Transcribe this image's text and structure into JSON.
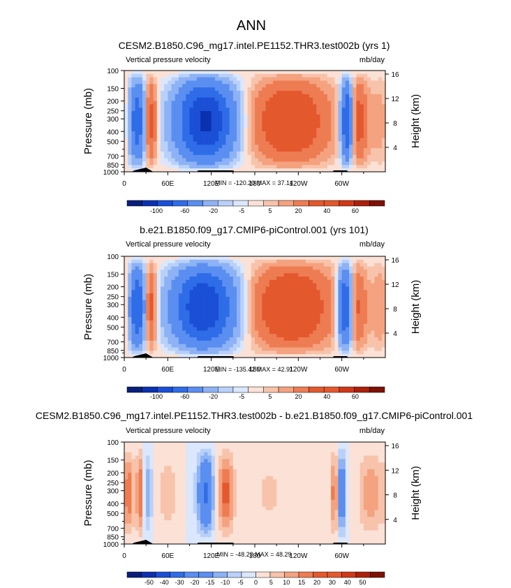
{
  "page_title": "ANN",
  "chart_data": [
    {
      "type": "heatmap",
      "title": "CESM2.B1850.C96_mg17.intel.PE1152.THR3.test002b (yrs 1)",
      "left_label": "Vertical pressure velocity",
      "right_label": "mb/day",
      "ylabel": "Pressure (mb)",
      "ylabel_right": "Height (km)",
      "x_ticks": [
        "0",
        "60E",
        "120E",
        "180",
        "120W",
        "60W"
      ],
      "x_tick_lons": [
        0,
        60,
        120,
        180,
        240,
        300
      ],
      "xlim": [
        0,
        360
      ],
      "y_ticks": [
        "100",
        "150",
        "200",
        "250",
        "300",
        "400",
        "500",
        "700",
        "850",
        "1000"
      ],
      "y_tick_values": [
        100,
        150,
        200,
        250,
        300,
        400,
        500,
        700,
        850,
        1000
      ],
      "ylim": [
        1000,
        100
      ],
      "y_log": true,
      "height_ticks": [
        "4",
        "8",
        "12",
        "16"
      ],
      "height_tick_values": [
        4,
        8,
        12,
        16
      ],
      "stats_text": "MIN = -120.20  MAX =  37.14",
      "colorbar_labels": [
        "-100",
        "-60",
        "-20",
        "-5",
        "5",
        "20",
        "40",
        "60"
      ],
      "colorbar_levels": [
        -100,
        -80,
        -60,
        -40,
        -20,
        -10,
        -5,
        -2,
        2,
        5,
        10,
        20,
        30,
        40,
        60,
        80
      ],
      "min": -120.2,
      "max": 37.14,
      "features": [
        {
          "lon": 18,
          "width": 8,
          "amp": -55
        },
        {
          "lon": 36,
          "width": 6,
          "amp": 30
        },
        {
          "lon": 112,
          "width": 28,
          "amp": -85
        },
        {
          "lon": 228,
          "width": 38,
          "amp": 35
        },
        {
          "lon": 307,
          "width": 6,
          "amp": -70
        },
        {
          "lon": 322,
          "width": 10,
          "amp": 25
        },
        {
          "lon": 355,
          "width": 10,
          "amp": 8
        }
      ]
    },
    {
      "type": "heatmap",
      "title": "b.e21.B1850.f09_g17.CMIP6-piControl.001 (yrs 101)",
      "left_label": "Vertical pressure velocity",
      "right_label": "mb/day",
      "ylabel": "Pressure (mb)",
      "ylabel_right": "Height (km)",
      "x_ticks": [
        "0",
        "60E",
        "120E",
        "180",
        "120W",
        "60W"
      ],
      "x_tick_lons": [
        0,
        60,
        120,
        180,
        240,
        300
      ],
      "xlim": [
        0,
        360
      ],
      "y_ticks": [
        "100",
        "150",
        "200",
        "250",
        "300",
        "400",
        "500",
        "700",
        "850",
        "1000"
      ],
      "y_tick_values": [
        100,
        150,
        200,
        250,
        300,
        400,
        500,
        700,
        850,
        1000
      ],
      "ylim": [
        1000,
        100
      ],
      "y_log": true,
      "height_ticks": [
        "4",
        "8",
        "12",
        "16"
      ],
      "height_tick_values": [
        4,
        8,
        12,
        16
      ],
      "stats_text": "MIN = -135.42  MAX =  42.91",
      "colorbar_labels": [
        "-100",
        "-60",
        "-20",
        "-5",
        "5",
        "20",
        "40",
        "60"
      ],
      "colorbar_levels": [
        -100,
        -80,
        -60,
        -40,
        -20,
        -10,
        -5,
        -2,
        2,
        5,
        10,
        20,
        30,
        40,
        60,
        80
      ],
      "min": -135.42,
      "max": 42.91,
      "features": [
        {
          "lon": 18,
          "width": 8,
          "amp": -60
        },
        {
          "lon": 36,
          "width": 6,
          "amp": 30
        },
        {
          "lon": 110,
          "width": 30,
          "amp": -80
        },
        {
          "lon": 230,
          "width": 38,
          "amp": 38
        },
        {
          "lon": 305,
          "width": 7,
          "amp": -70
        },
        {
          "lon": 320,
          "width": 10,
          "amp": 22
        },
        {
          "lon": 355,
          "width": 10,
          "amp": 10
        }
      ]
    },
    {
      "type": "heatmap",
      "title": "CESM2.B1850.C96_mg17.intel.PE1152.THR3.test002b - b.e21.B1850.f09_g17.CMIP6-piControl.001",
      "left_label": "Vertical pressure velocity",
      "right_label": "mb/day",
      "ylabel": "Pressure (mb)",
      "ylabel_right": "Height (km)",
      "x_ticks": [
        "0",
        "60E",
        "120E",
        "180",
        "120W",
        "60W"
      ],
      "x_tick_lons": [
        0,
        60,
        120,
        180,
        240,
        300
      ],
      "xlim": [
        0,
        360
      ],
      "y_ticks": [
        "100",
        "150",
        "200",
        "250",
        "300",
        "400",
        "500",
        "700",
        "850",
        "1000"
      ],
      "y_tick_values": [
        100,
        150,
        200,
        250,
        300,
        400,
        500,
        700,
        850,
        1000
      ],
      "ylim": [
        1000,
        100
      ],
      "y_log": true,
      "height_ticks": [
        "4",
        "8",
        "12",
        "16"
      ],
      "height_tick_values": [
        4,
        8,
        12,
        16
      ],
      "stats_text": "MIN = -48.23  MAX =  48.29",
      "colorbar_labels": [
        "-50",
        "-40",
        "-30",
        "-20",
        "-15",
        "-10",
        "-5",
        "0",
        "5",
        "10",
        "15",
        "20",
        "30",
        "40",
        "50"
      ],
      "colorbar_levels": [
        -60,
        -50,
        -40,
        -30,
        -20,
        -15,
        -10,
        -5,
        0,
        5,
        10,
        15,
        20,
        30,
        40,
        50,
        60
      ],
      "min": -48.23,
      "max": 48.29,
      "features": [
        {
          "lon": 6,
          "width": 5,
          "amp": 18
        },
        {
          "lon": 22,
          "width": 4,
          "amp": 22
        },
        {
          "lon": 32,
          "width": 5,
          "amp": -14
        },
        {
          "lon": 60,
          "width": 10,
          "amp": 8
        },
        {
          "lon": 112,
          "width": 8,
          "amp": -32
        },
        {
          "lon": 140,
          "width": 8,
          "amp": 22
        },
        {
          "lon": 200,
          "width": 20,
          "amp": 6
        },
        {
          "lon": 290,
          "width": 3,
          "amp": 22
        },
        {
          "lon": 300,
          "width": 4,
          "amp": -25
        },
        {
          "lon": 340,
          "width": 12,
          "amp": 14
        }
      ]
    }
  ]
}
